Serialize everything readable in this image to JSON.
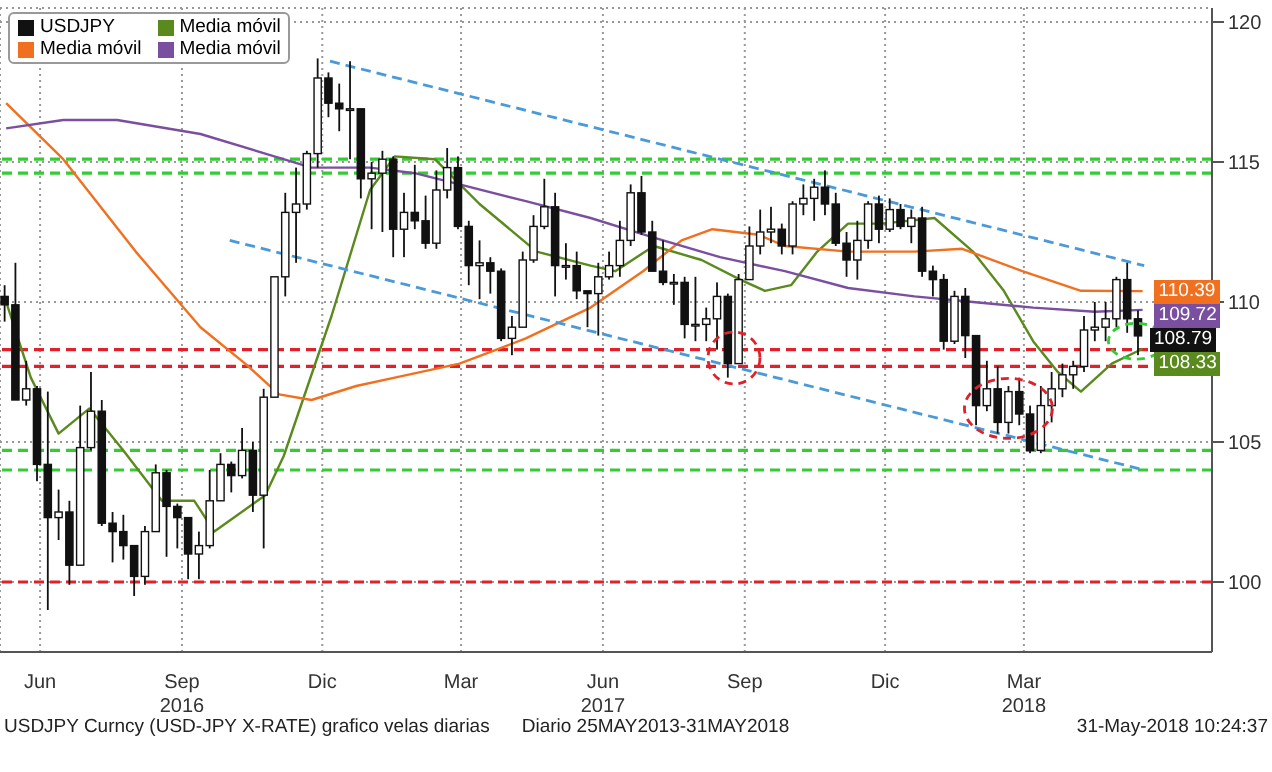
{
  "chart_data": {
    "type": "candlestick",
    "xlim": [
      "2016-05-20",
      "2018-07-15"
    ],
    "ylim": [
      97.5,
      120.5
    ],
    "yticks": [
      100,
      105,
      110,
      115,
      120
    ],
    "xticks": [
      {
        "value": "2016-06-15",
        "label": "Jun"
      },
      {
        "value": "2016-09-15",
        "label": "Sep\n2016"
      },
      {
        "value": "2016-12-15",
        "label": "Dic"
      },
      {
        "value": "2017-03-15",
        "label": "Mar"
      },
      {
        "value": "2017-06-15",
        "label": "Jun\n2017"
      },
      {
        "value": "2017-09-15",
        "label": "Sep"
      },
      {
        "value": "2017-12-15",
        "label": "Dic"
      },
      {
        "value": "2018-03-15",
        "label": "Mar\n2018"
      }
    ],
    "grid": true,
    "legend": "top left",
    "series": [
      {
        "name": "USDJPY",
        "type": "candlestick",
        "color": "#111111",
        "x": [
          "2016-05-23",
          "2016-05-30",
          "2016-06-06",
          "2016-06-13",
          "2016-06-20",
          "2016-06-27",
          "2016-07-04",
          "2016-07-11",
          "2016-07-18",
          "2016-07-25",
          "2016-08-01",
          "2016-08-08",
          "2016-08-15",
          "2016-08-22",
          "2016-08-29",
          "2016-09-05",
          "2016-09-12",
          "2016-09-19",
          "2016-09-26",
          "2016-10-03",
          "2016-10-10",
          "2016-10-17",
          "2016-10-24",
          "2016-10-31",
          "2016-11-07",
          "2016-11-14",
          "2016-11-21",
          "2016-11-28",
          "2016-12-05",
          "2016-12-12",
          "2016-12-19",
          "2016-12-26",
          "2017-01-02",
          "2017-01-09",
          "2017-01-16",
          "2017-01-23",
          "2017-01-30",
          "2017-02-06",
          "2017-02-13",
          "2017-02-20",
          "2017-02-27",
          "2017-03-06",
          "2017-03-13",
          "2017-03-20",
          "2017-03-27",
          "2017-04-03",
          "2017-04-10",
          "2017-04-17",
          "2017-04-24",
          "2017-05-01",
          "2017-05-08",
          "2017-05-15",
          "2017-05-22",
          "2017-05-29",
          "2017-06-05",
          "2017-06-12",
          "2017-06-19",
          "2017-06-26",
          "2017-07-03",
          "2017-07-10",
          "2017-07-17",
          "2017-07-24",
          "2017-07-31",
          "2017-08-07",
          "2017-08-14",
          "2017-08-21",
          "2017-08-28",
          "2017-09-04",
          "2017-09-11",
          "2017-09-18",
          "2017-09-25",
          "2017-10-02",
          "2017-10-09",
          "2017-10-16",
          "2017-10-23",
          "2017-10-30",
          "2017-11-06",
          "2017-11-13",
          "2017-11-20",
          "2017-11-27",
          "2017-12-04",
          "2017-12-11",
          "2017-12-18",
          "2017-12-25",
          "2018-01-01",
          "2018-01-08",
          "2018-01-15",
          "2018-01-22",
          "2018-01-29",
          "2018-02-05",
          "2018-02-12",
          "2018-02-19",
          "2018-02-26",
          "2018-03-05",
          "2018-03-12",
          "2018-03-19",
          "2018-03-26",
          "2018-04-02",
          "2018-04-09",
          "2018-04-16",
          "2018-04-23",
          "2018-04-30",
          "2018-05-07",
          "2018-05-14",
          "2018-05-21",
          "2018-05-28"
        ],
        "ohlc": [
          [
            110.2,
            110.6,
            109.3,
            109.9
          ],
          [
            109.9,
            111.4,
            106.5,
            106.5
          ],
          [
            106.5,
            107.9,
            106.3,
            106.9
          ],
          [
            106.9,
            107.0,
            103.6,
            104.2
          ],
          [
            104.2,
            106.8,
            99.0,
            102.3
          ],
          [
            102.3,
            103.3,
            101.5,
            102.5
          ],
          [
            102.5,
            102.9,
            99.9,
            100.6
          ],
          [
            100.6,
            106.3,
            100.6,
            104.8
          ],
          [
            104.8,
            107.5,
            104.7,
            106.1
          ],
          [
            106.1,
            106.5,
            102.0,
            102.1
          ],
          [
            102.1,
            102.5,
            100.7,
            101.8
          ],
          [
            101.8,
            102.4,
            100.8,
            101.3
          ],
          [
            101.3,
            101.3,
            99.5,
            100.2
          ],
          [
            100.2,
            102.0,
            99.9,
            101.8
          ],
          [
            101.8,
            104.2,
            101.8,
            103.9
          ],
          [
            103.9,
            104.0,
            100.9,
            102.7
          ],
          [
            102.7,
            102.8,
            101.2,
            102.3
          ],
          [
            102.3,
            102.3,
            100.1,
            101.0
          ],
          [
            101.0,
            101.8,
            100.1,
            101.3
          ],
          [
            101.3,
            104.0,
            101.2,
            102.9
          ],
          [
            102.9,
            104.6,
            102.9,
            104.2
          ],
          [
            104.2,
            104.3,
            103.2,
            103.8
          ],
          [
            103.8,
            105.5,
            103.7,
            104.7
          ],
          [
            104.7,
            105.0,
            102.5,
            103.1
          ],
          [
            103.1,
            106.9,
            101.2,
            106.6
          ],
          [
            106.6,
            110.9,
            106.6,
            110.9
          ],
          [
            110.9,
            113.9,
            110.2,
            113.2
          ],
          [
            113.2,
            114.8,
            111.4,
            113.5
          ],
          [
            113.5,
            115.4,
            113.3,
            115.3
          ],
          [
            115.3,
            118.7,
            114.8,
            118.0
          ],
          [
            118.0,
            118.2,
            116.6,
            117.1
          ],
          [
            117.1,
            117.8,
            116.1,
            116.9
          ],
          [
            116.9,
            118.6,
            115.1,
            116.9
          ],
          [
            116.9,
            116.9,
            113.7,
            114.4
          ],
          [
            114.4,
            115.0,
            112.6,
            114.6
          ],
          [
            114.6,
            115.4,
            112.5,
            115.1
          ],
          [
            115.1,
            115.2,
            111.6,
            112.6
          ],
          [
            112.6,
            113.9,
            111.6,
            113.2
          ],
          [
            113.2,
            114.9,
            112.6,
            112.9
          ],
          [
            112.9,
            113.8,
            111.9,
            112.1
          ],
          [
            112.1,
            114.7,
            111.9,
            114.0
          ],
          [
            114.0,
            115.5,
            113.7,
            114.8
          ],
          [
            114.8,
            115.2,
            112.6,
            112.7
          ],
          [
            112.7,
            112.9,
            110.6,
            111.3
          ],
          [
            111.3,
            112.2,
            110.1,
            111.4
          ],
          [
            111.4,
            111.6,
            110.3,
            111.1
          ],
          [
            111.1,
            111.2,
            108.6,
            108.7
          ],
          [
            108.7,
            109.5,
            108.1,
            109.1
          ],
          [
            109.1,
            111.8,
            109.1,
            111.5
          ],
          [
            111.5,
            113.1,
            111.4,
            112.7
          ],
          [
            112.7,
            114.4,
            112.6,
            113.4
          ],
          [
            113.4,
            113.9,
            110.2,
            111.3
          ],
          [
            111.3,
            112.1,
            110.8,
            111.3
          ],
          [
            111.3,
            111.8,
            110.1,
            110.4
          ],
          [
            110.4,
            110.4,
            109.1,
            110.3
          ],
          [
            110.3,
            111.4,
            108.8,
            110.9
          ],
          [
            110.9,
            111.8,
            110.8,
            111.3
          ],
          [
            111.3,
            112.9,
            110.9,
            112.2
          ],
          [
            112.2,
            114.2,
            112.0,
            113.9
          ],
          [
            113.9,
            114.5,
            112.4,
            112.5
          ],
          [
            112.5,
            112.9,
            111.1,
            111.1
          ],
          [
            111.1,
            112.2,
            110.6,
            110.7
          ],
          [
            110.7,
            111.0,
            109.9,
            110.7
          ],
          [
            110.7,
            110.9,
            108.7,
            109.2
          ],
          [
            109.2,
            110.9,
            108.6,
            109.2
          ],
          [
            109.2,
            109.8,
            108.6,
            109.4
          ],
          [
            109.4,
            110.7,
            108.3,
            110.2
          ],
          [
            110.2,
            110.3,
            107.3,
            107.8
          ],
          [
            107.8,
            111.0,
            107.8,
            110.8
          ],
          [
            110.8,
            112.7,
            110.8,
            112.0
          ],
          [
            112.0,
            113.3,
            111.7,
            112.5
          ],
          [
            112.5,
            113.4,
            112.1,
            112.6
          ],
          [
            112.6,
            112.8,
            111.7,
            112.0
          ],
          [
            112.0,
            113.6,
            111.7,
            113.5
          ],
          [
            113.5,
            114.2,
            113.1,
            113.7
          ],
          [
            113.7,
            114.4,
            112.9,
            114.1
          ],
          [
            114.1,
            114.7,
            113.1,
            113.5
          ],
          [
            113.5,
            113.9,
            112.0,
            112.1
          ],
          [
            112.1,
            112.5,
            110.9,
            111.5
          ],
          [
            111.5,
            112.9,
            110.8,
            112.2
          ],
          [
            112.2,
            113.6,
            111.9,
            113.5
          ],
          [
            113.5,
            113.8,
            112.1,
            112.6
          ],
          [
            112.6,
            113.7,
            112.5,
            113.3
          ],
          [
            113.3,
            113.5,
            112.6,
            112.7
          ],
          [
            112.7,
            113.3,
            112.1,
            113.0
          ],
          [
            113.0,
            113.4,
            110.9,
            111.1
          ],
          [
            111.1,
            111.3,
            110.2,
            110.8
          ],
          [
            110.8,
            111.0,
            108.3,
            108.6
          ],
          [
            108.6,
            110.4,
            108.5,
            110.2
          ],
          [
            110.2,
            110.5,
            108.0,
            108.8
          ],
          [
            108.8,
            108.8,
            105.6,
            106.3
          ],
          [
            106.3,
            107.9,
            106.1,
            106.9
          ],
          [
            106.9,
            107.7,
            105.3,
            105.7
          ],
          [
            105.7,
            107.0,
            105.3,
            106.8
          ],
          [
            106.8,
            107.3,
            105.6,
            106.0
          ],
          [
            106.0,
            106.3,
            104.6,
            104.7
          ],
          [
            104.7,
            107.0,
            104.6,
            106.3
          ],
          [
            106.3,
            107.5,
            105.7,
            106.9
          ],
          [
            106.9,
            107.8,
            106.6,
            107.4
          ],
          [
            107.4,
            107.9,
            106.9,
            107.7
          ],
          [
            107.7,
            109.5,
            107.5,
            109.0
          ],
          [
            109.0,
            110.0,
            108.6,
            109.1
          ],
          [
            109.1,
            110.0,
            108.6,
            109.4
          ],
          [
            109.4,
            110.9,
            109.1,
            110.8
          ],
          [
            110.8,
            111.4,
            108.9,
            109.4
          ],
          [
            109.4,
            109.7,
            108.1,
            108.79
          ]
        ]
      },
      {
        "name": "Media móvil",
        "type": "line",
        "color": "#5a8a1e",
        "x": [
          "2016-05-24",
          "2016-06-09",
          "2016-06-27",
          "2016-07-17",
          "2016-08-08",
          "2016-09-02",
          "2016-09-23",
          "2016-10-06",
          "2016-11-08",
          "2016-11-20",
          "2016-12-21",
          "2017-01-15",
          "2017-01-31",
          "2017-02-26",
          "2017-03-27",
          "2017-05-03",
          "2017-06-07",
          "2017-06-23",
          "2017-07-18",
          "2017-08-18",
          "2017-09-12",
          "2017-09-28",
          "2017-10-15",
          "2017-11-01",
          "2017-11-21",
          "2017-12-13",
          "2018-01-16",
          "2018-02-10",
          "2018-03-02",
          "2018-03-21",
          "2018-04-06",
          "2018-04-21",
          "2018-05-11",
          "2018-05-31"
        ],
        "values": [
          110.0,
          107.3,
          105.3,
          106.2,
          104.7,
          102.9,
          102.9,
          101.8,
          103.1,
          104.5,
          109.5,
          114.0,
          115.2,
          115.1,
          113.5,
          111.8,
          111.3,
          111.1,
          112.0,
          111.5,
          110.8,
          110.4,
          110.6,
          111.8,
          112.8,
          112.8,
          113.0,
          111.8,
          110.4,
          108.6,
          107.5,
          106.8,
          107.8,
          108.33
        ]
      },
      {
        "name": "Media móvil",
        "type": "line",
        "color": "#f07020",
        "x": [
          "2016-05-24",
          "2016-06-30",
          "2016-08-16",
          "2016-09-27",
          "2016-10-26",
          "2016-11-17",
          "2016-12-08",
          "2017-01-06",
          "2017-01-31",
          "2017-03-14",
          "2017-04-26",
          "2017-06-07",
          "2017-07-11",
          "2017-08-05",
          "2017-08-25",
          "2017-09-24",
          "2017-10-11",
          "2017-11-21",
          "2018-01-03",
          "2018-02-03",
          "2018-03-14",
          "2018-04-21",
          "2018-05-31"
        ],
        "values": [
          117.1,
          115.1,
          111.8,
          109.1,
          107.8,
          106.7,
          106.5,
          107.0,
          107.3,
          107.8,
          108.7,
          109.8,
          111.1,
          112.2,
          112.6,
          112.4,
          112.0,
          111.8,
          111.8,
          111.9,
          111.1,
          110.4,
          110.39
        ]
      },
      {
        "name": "Media móvil",
        "type": "line",
        "color": "#7a4fa0",
        "x": [
          "2016-05-24",
          "2016-06-30",
          "2016-08-04",
          "2016-09-27",
          "2016-11-08",
          "2016-12-08",
          "2017-01-15",
          "2017-02-13",
          "2017-03-14",
          "2017-04-26",
          "2017-06-07",
          "2017-07-18",
          "2017-08-30",
          "2017-10-11",
          "2017-11-21",
          "2018-01-03",
          "2018-02-10",
          "2018-03-21",
          "2018-04-30",
          "2018-05-31"
        ],
        "values": [
          116.2,
          116.5,
          116.5,
          116.0,
          115.3,
          114.8,
          114.8,
          114.6,
          114.2,
          113.6,
          113.0,
          112.3,
          111.6,
          111.1,
          110.5,
          110.2,
          110.0,
          109.8,
          109.65,
          109.72
        ]
      },
      {
        "type": "line",
        "color": "#4a9ad8",
        "line_style": "dashed",
        "x": [
          "2016-12-20",
          "2018-06-01"
        ],
        "values": [
          118.6,
          111.3
        ]
      },
      {
        "type": "line",
        "color": "#4a9ad8",
        "line_style": "dashed",
        "x": [
          "2016-10-16",
          "2018-06-01"
        ],
        "values": [
          112.2,
          104.0
        ]
      }
    ],
    "ref_lines": [
      {
        "axis": "y",
        "value": 100,
        "color": "#e0202a",
        "line_style": "dashed"
      },
      {
        "axis": "y",
        "value": 108.3,
        "color": "#e0202a",
        "line_style": "dashed"
      },
      {
        "axis": "y",
        "value": 107.7,
        "color": "#e0202a",
        "line_style": "dashed"
      },
      {
        "axis": "y",
        "value": 115.1,
        "color": "#33cc33",
        "line_style": "dashed"
      },
      {
        "axis": "y",
        "value": 114.6,
        "color": "#33cc33",
        "line_style": "dashed"
      },
      {
        "axis": "y",
        "value": 104.7,
        "color": "#33cc33",
        "line_style": "dashed"
      },
      {
        "axis": "y",
        "value": 104.0,
        "color": "#33cc33",
        "line_style": "dashed"
      }
    ],
    "annotations": [
      {
        "text": "110.39",
        "x": "2018-05-31",
        "y": 110.39
      },
      {
        "text": "109.72",
        "x": "2018-05-31",
        "y": 109.72
      },
      {
        "text": "108.79",
        "x": "2018-05-28",
        "y": 108.79
      },
      {
        "text": "108.33",
        "x": "2018-05-31",
        "y": 108.33
      },
      "USDJPY Curncy (USD-JPY X-RATE) grafico velas diarias",
      "Diario 25MAY2013-31MAY2018",
      "31-May-2018 10:24:37"
    ]
  }
}
